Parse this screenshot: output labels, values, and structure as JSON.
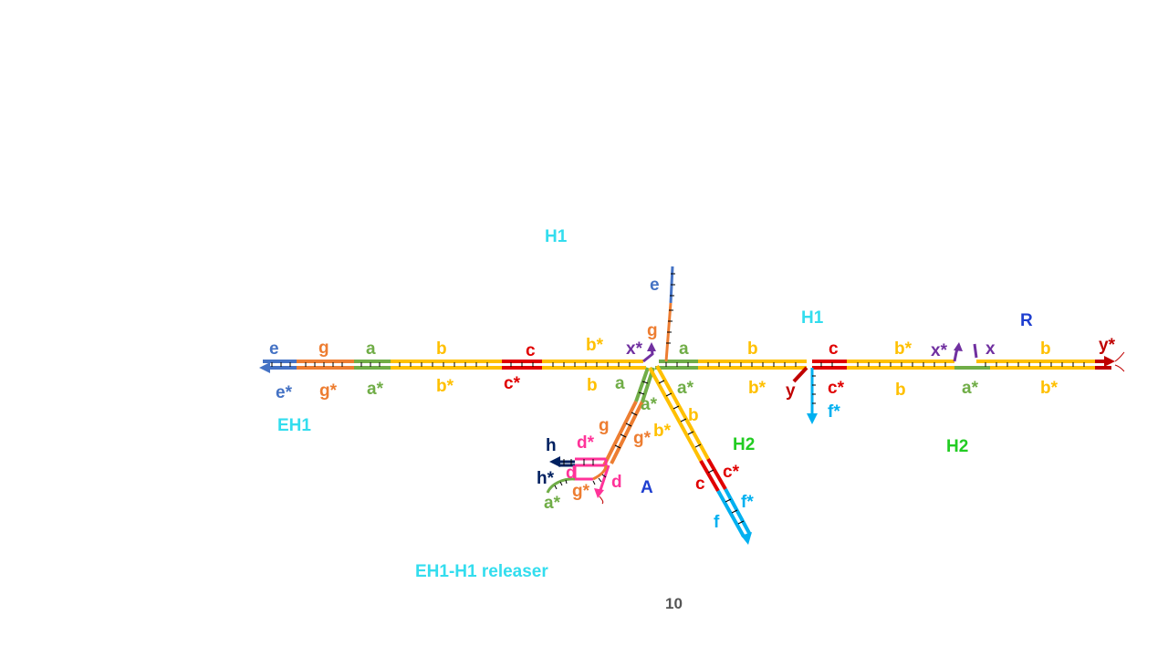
{
  "colors": {
    "e": "#4472c4",
    "g": "#ed7d31",
    "a": "#70ad47",
    "b": "#ffc000",
    "c": "#e00000",
    "x": "#7030a0",
    "y": "#c00000",
    "f": "#00b0f0",
    "d": "#ff3399",
    "h": "#002060",
    "cyan_label": "#33ddee",
    "green_label": "#22cc22",
    "blue_label": "#1f3fd0",
    "tick": "#000000"
  },
  "labels": {
    "H1_top": "H1",
    "H1_right": "H1",
    "R": "R",
    "EH1": "EH1",
    "H2_mid": "H2",
    "H2_right": "H2",
    "A": "A",
    "releaser": "EH1-H1 releaser",
    "page_number": "10"
  },
  "domains": {
    "top_e": "e",
    "top_g": "g",
    "top_a": "a",
    "top_b": "b",
    "top_c": "c",
    "top_bstar1": "b*",
    "top_xstar1": "x*",
    "stem_e": "e",
    "stem_g": "g",
    "right_a": "a",
    "right_b": "b",
    "right_c": "c",
    "right_bstar": "b*",
    "right_xstar": "x*",
    "right_x": "x",
    "right_b2": "b",
    "right_ystar": "y*",
    "bot_estar": "e*",
    "bot_gstar": "g*",
    "bot_astar": "a*",
    "bot_bstar": "b*",
    "bot_cstar": "c*",
    "bot_b": "b",
    "mid_a": "a",
    "mid_astar": "a*",
    "mid_bstar2": "b*",
    "mid_y": "y",
    "mid_cstar": "c*",
    "mid_fstar": "f*",
    "mid_b2": "b",
    "mid_astar2": "a*",
    "mid_bstar3": "b*",
    "arm_a": "a",
    "arm_astar": "a*",
    "arm_g": "g",
    "arm_gstar": "g*",
    "arm_bstar": "b*",
    "arm_b": "b",
    "arm_c": "c",
    "arm_cstar": "c*",
    "arm_f": "f",
    "arm_fstar": "f*",
    "rel_h": "h",
    "rel_dstar": "d*",
    "rel_hstar": "h*",
    "rel_d": "d",
    "rel_d2": "d",
    "rel_gstar": "g*",
    "rel_astar": "a*"
  }
}
